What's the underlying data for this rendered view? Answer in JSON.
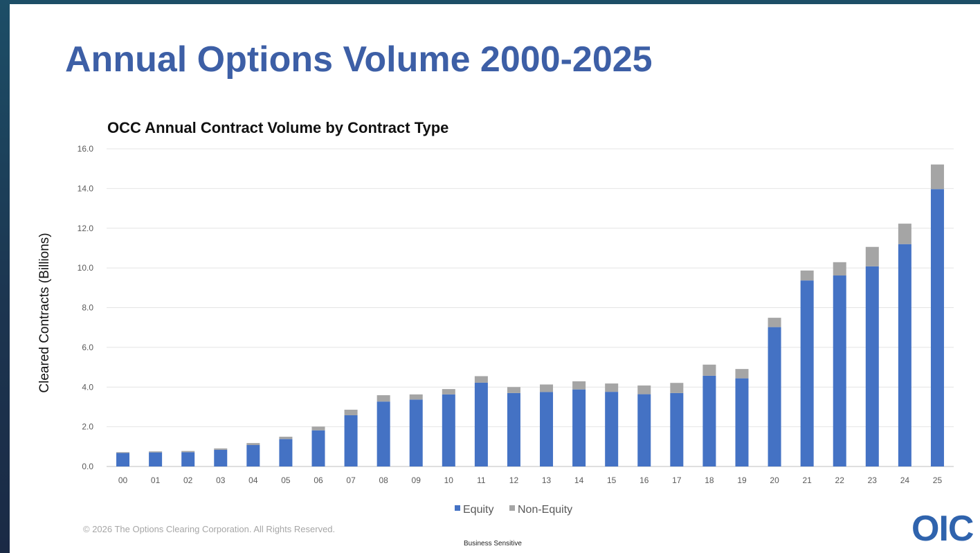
{
  "slide": {
    "title": "Annual Options Volume 2000-2025",
    "footer_copyright": "© 2026 The Options Clearing Corporation. All Rights Reserved.",
    "footer_sensitivity": "Business Sensitive",
    "logo_text": "OIC"
  },
  "colors": {
    "equity": "#4472c4",
    "non_equity": "#a5a5a5",
    "title": "#3d5fa6",
    "logo": "#2f63ad"
  },
  "chart_data": {
    "type": "bar",
    "stacked": true,
    "title": "OCC Annual Contract Volume by Contract Type",
    "xlabel": "",
    "ylabel": "Cleared Contracts (Billions)",
    "ylim": [
      0,
      16
    ],
    "yticks": [
      "0.0",
      "2.0",
      "4.0",
      "6.0",
      "8.0",
      "10.0",
      "12.0",
      "14.0",
      "16.0"
    ],
    "grid": true,
    "legend_position": "bottom",
    "categories": [
      "00",
      "01",
      "02",
      "03",
      "04",
      "05",
      "06",
      "07",
      "08",
      "09",
      "10",
      "11",
      "12",
      "13",
      "14",
      "15",
      "16",
      "17",
      "18",
      "19",
      "20",
      "21",
      "22",
      "23",
      "24",
      "25"
    ],
    "series": [
      {
        "name": "Equity",
        "color": "#4472c4",
        "values": [
          0.68,
          0.71,
          0.72,
          0.84,
          1.08,
          1.38,
          1.82,
          2.58,
          3.27,
          3.37,
          3.63,
          4.22,
          3.7,
          3.75,
          3.88,
          3.76,
          3.64,
          3.7,
          4.57,
          4.44,
          7.02,
          9.37,
          9.62,
          10.08,
          11.2,
          13.97
        ]
      },
      {
        "name": "Non-Equity",
        "color": "#a5a5a5",
        "values": [
          0.04,
          0.05,
          0.06,
          0.07,
          0.1,
          0.12,
          0.19,
          0.28,
          0.32,
          0.26,
          0.27,
          0.33,
          0.3,
          0.38,
          0.41,
          0.42,
          0.44,
          0.51,
          0.56,
          0.47,
          0.47,
          0.5,
          0.67,
          0.98,
          1.03,
          1.24
        ]
      }
    ]
  }
}
